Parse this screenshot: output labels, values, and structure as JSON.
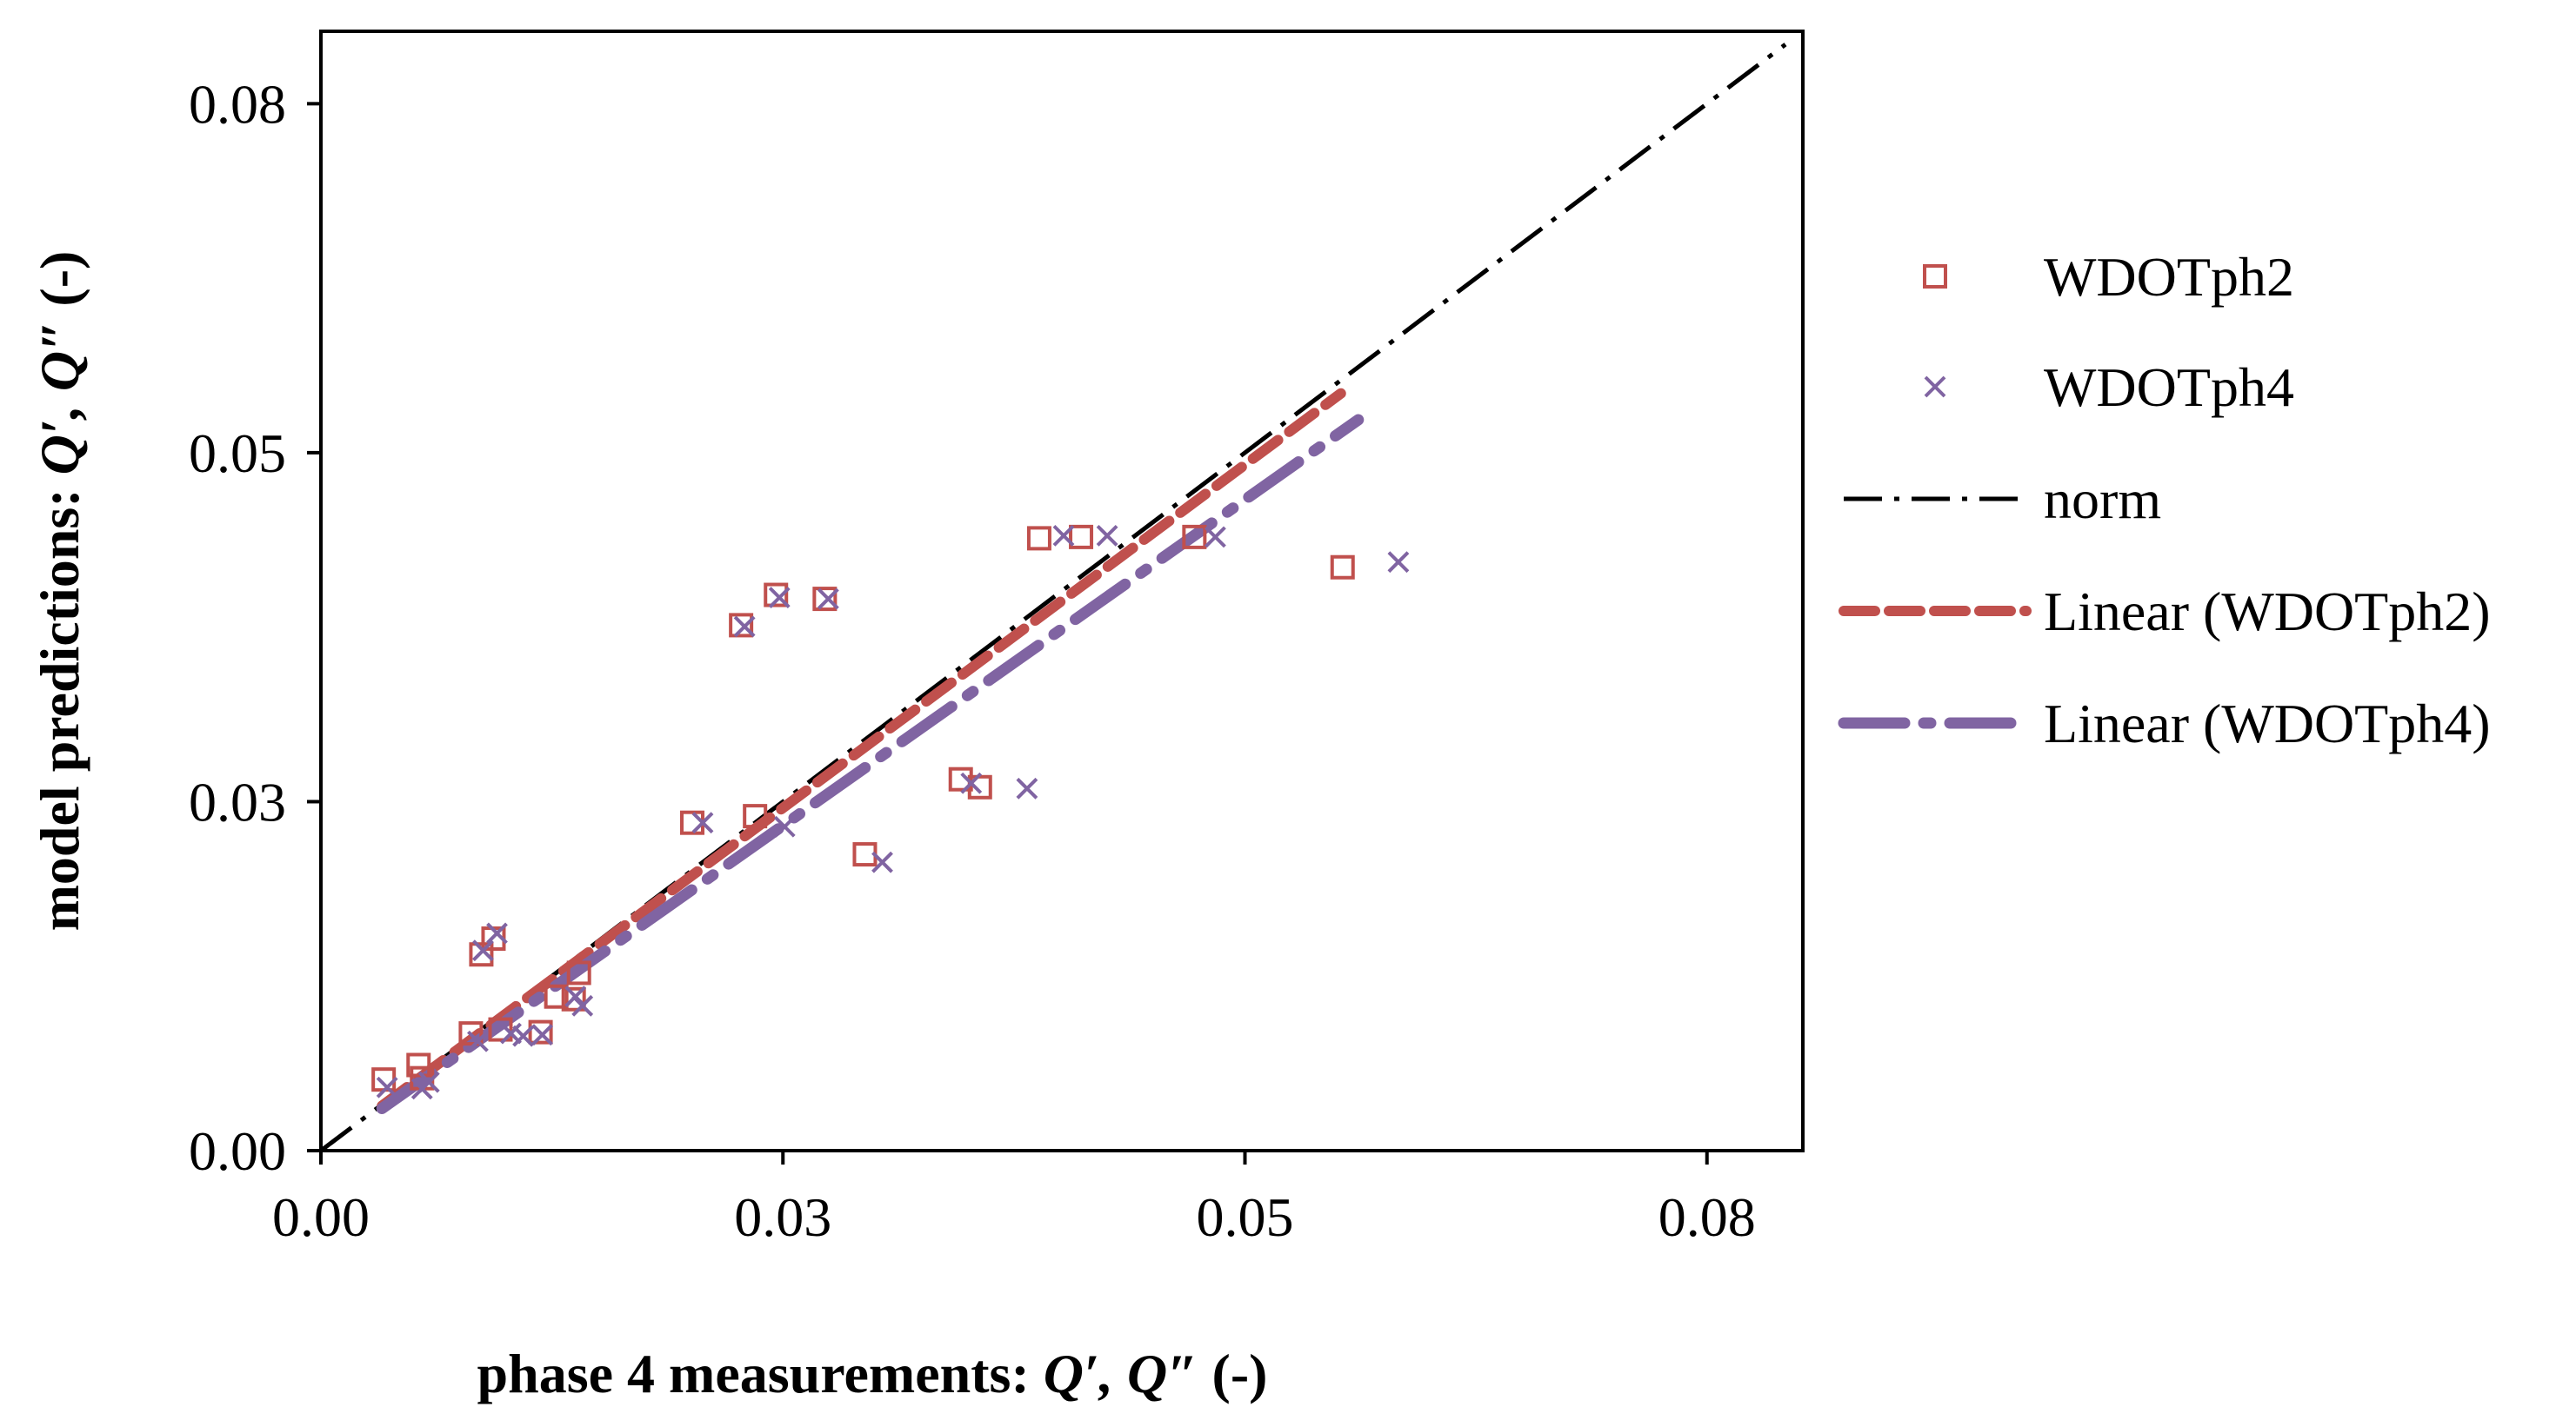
{
  "chart_data": {
    "type": "scatter",
    "xlabel": {
      "text": "phase 4 measurements: ",
      "italic": "Q′, Q″",
      "suffix": " (-)"
    },
    "ylabel": {
      "text": "model predictions: ",
      "italic": "Q′, Q″",
      "suffix": " (-)"
    },
    "xlim": [
      0,
      0.085
    ],
    "ylim": [
      0,
      0.085
    ],
    "xticks": [
      0,
      0.0265,
      0.053,
      0.0795
    ],
    "xtick_labels": [
      "0.00",
      "0.03",
      "0.05",
      "0.08"
    ],
    "yticks": [
      0,
      0.0265,
      0.053,
      0.0795
    ],
    "ytick_labels": [
      "0.00",
      "0.03",
      "0.05",
      "0.08"
    ],
    "colors": {
      "ph2": "#c0504d",
      "ph4": "#8064a2",
      "norm": "#000000"
    },
    "series": [
      {
        "name": "WDOTph2",
        "marker": "square",
        "points": [
          [
            0.0036,
            0.0054
          ],
          [
            0.0056,
            0.0065
          ],
          [
            0.0058,
            0.0055
          ],
          [
            0.0086,
            0.0089
          ],
          [
            0.0092,
            0.0149
          ],
          [
            0.0099,
            0.0161
          ],
          [
            0.0103,
            0.0092
          ],
          [
            0.0126,
            0.009
          ],
          [
            0.0135,
            0.0117
          ],
          [
            0.0145,
            0.0115
          ],
          [
            0.0148,
            0.0135
          ],
          [
            0.0213,
            0.0249
          ],
          [
            0.0241,
            0.0399
          ],
          [
            0.0249,
            0.0254
          ],
          [
            0.0261,
            0.0422
          ],
          [
            0.0289,
            0.0419
          ],
          [
            0.0312,
            0.0225
          ],
          [
            0.0367,
            0.0282
          ],
          [
            0.0378,
            0.0276
          ],
          [
            0.0412,
            0.0465
          ],
          [
            0.0436,
            0.0466
          ],
          [
            0.0501,
            0.0466
          ],
          [
            0.0586,
            0.0443
          ]
        ]
      },
      {
        "name": "WDOTph4",
        "marker": "x",
        "points": [
          [
            0.0038,
            0.0048
          ],
          [
            0.0058,
            0.0047
          ],
          [
            0.0062,
            0.0052
          ],
          [
            0.009,
            0.0083
          ],
          [
            0.0093,
            0.0152
          ],
          [
            0.0101,
            0.0165
          ],
          [
            0.0109,
            0.0089
          ],
          [
            0.0116,
            0.0087
          ],
          [
            0.0127,
            0.0088
          ],
          [
            0.0146,
            0.0117
          ],
          [
            0.015,
            0.011
          ],
          [
            0.0219,
            0.0249
          ],
          [
            0.0243,
            0.0398
          ],
          [
            0.0266,
            0.0246
          ],
          [
            0.0263,
            0.042
          ],
          [
            0.0291,
            0.0419
          ],
          [
            0.0322,
            0.0219
          ],
          [
            0.0373,
            0.0279
          ],
          [
            0.0405,
            0.0275
          ],
          [
            0.0426,
            0.0467
          ],
          [
            0.0451,
            0.0467
          ],
          [
            0.0513,
            0.0466
          ],
          [
            0.0618,
            0.0447
          ]
        ]
      },
      {
        "name": "norm",
        "line": true,
        "style": "dash-dot",
        "points": [
          [
            0,
            0
          ],
          [
            0.084,
            0.084
          ]
        ]
      },
      {
        "name": "Linear (WDOTph2)",
        "line": true,
        "style": "dashed",
        "points": [
          [
            0.0035,
            0.0034
          ],
          [
            0.0585,
            0.0575
          ]
        ]
      },
      {
        "name": "Linear (WDOTph4)",
        "line": true,
        "style": "long-dash-dot",
        "points": [
          [
            0.0035,
            0.0032
          ],
          [
            0.0595,
            0.0555
          ]
        ]
      }
    ],
    "legend": {
      "position": "right",
      "entries": [
        "WDOTph2",
        "WDOTph4",
        "norm",
        "Linear (WDOTph2)",
        "Linear (WDOTph4)"
      ]
    }
  }
}
